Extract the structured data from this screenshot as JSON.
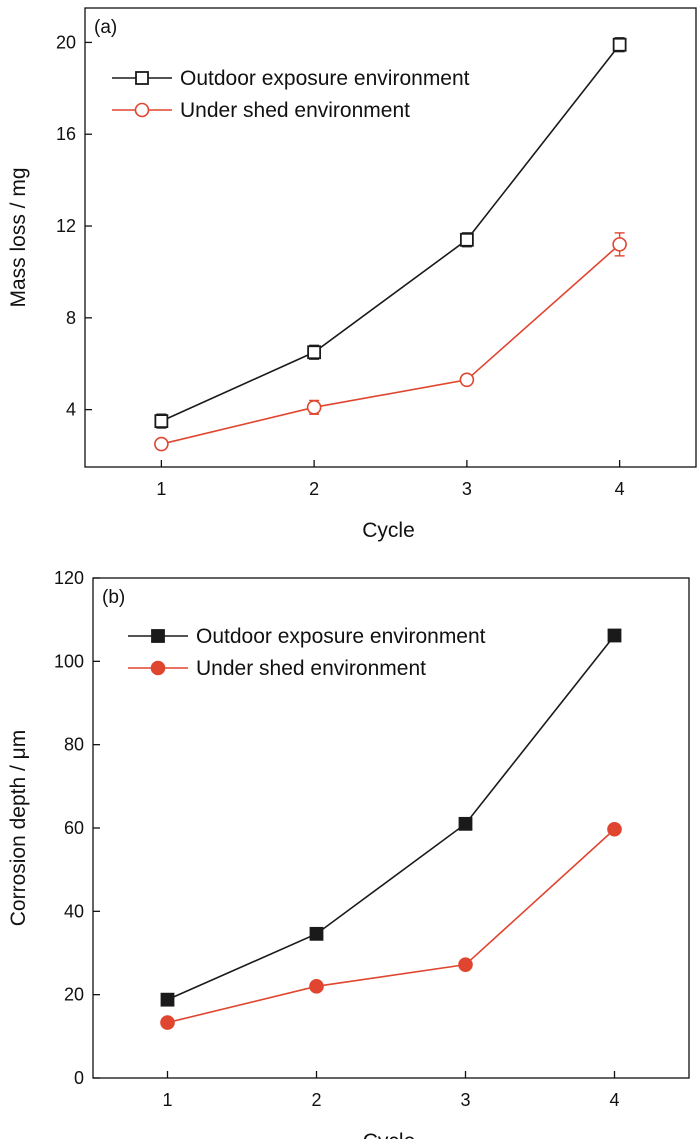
{
  "chart_data": [
    {
      "type": "line",
      "panel_label": "(a)",
      "xlabel": "Cycle",
      "ylabel": "Mass loss / mg",
      "categories": [
        1,
        2,
        3,
        4
      ],
      "xlim": [
        0.5,
        4.5
      ],
      "ylim": [
        1.5,
        21.5
      ],
      "yticks": [
        4,
        8,
        12,
        16,
        20
      ],
      "grid": false,
      "legend_position": "top-left",
      "series": [
        {
          "name": "Outdoor exposure environment",
          "values": [
            3.5,
            6.5,
            11.4,
            19.9
          ],
          "errors": [
            0.3,
            0.3,
            0.3,
            0.3
          ],
          "color": "#1a1a1a",
          "marker": "square-open"
        },
        {
          "name": "Under shed environment",
          "values": [
            2.5,
            4.1,
            5.3,
            11.2
          ],
          "errors": [
            0.2,
            0.3,
            0.2,
            0.5
          ],
          "color": "#e0452f",
          "marker": "circle-open"
        }
      ]
    },
    {
      "type": "line",
      "panel_label": "(b)",
      "xlabel": "Cycle",
      "ylabel": "Corrosion depth / μm",
      "categories": [
        1,
        2,
        3,
        4
      ],
      "xlim": [
        0.5,
        4.5
      ],
      "ylim": [
        0,
        120
      ],
      "yticks": [
        0,
        20,
        40,
        60,
        80,
        100,
        120
      ],
      "grid": false,
      "legend_position": "top-left",
      "series": [
        {
          "name": "Outdoor exposure environment",
          "values": [
            18.8,
            34.6,
            61.0,
            106.2
          ],
          "color": "#1a1a1a",
          "marker": "square-filled"
        },
        {
          "name": "Under shed environment",
          "values": [
            13.3,
            22.0,
            27.2,
            59.7
          ],
          "color": "#e0452f",
          "marker": "circle-filled"
        }
      ]
    }
  ]
}
